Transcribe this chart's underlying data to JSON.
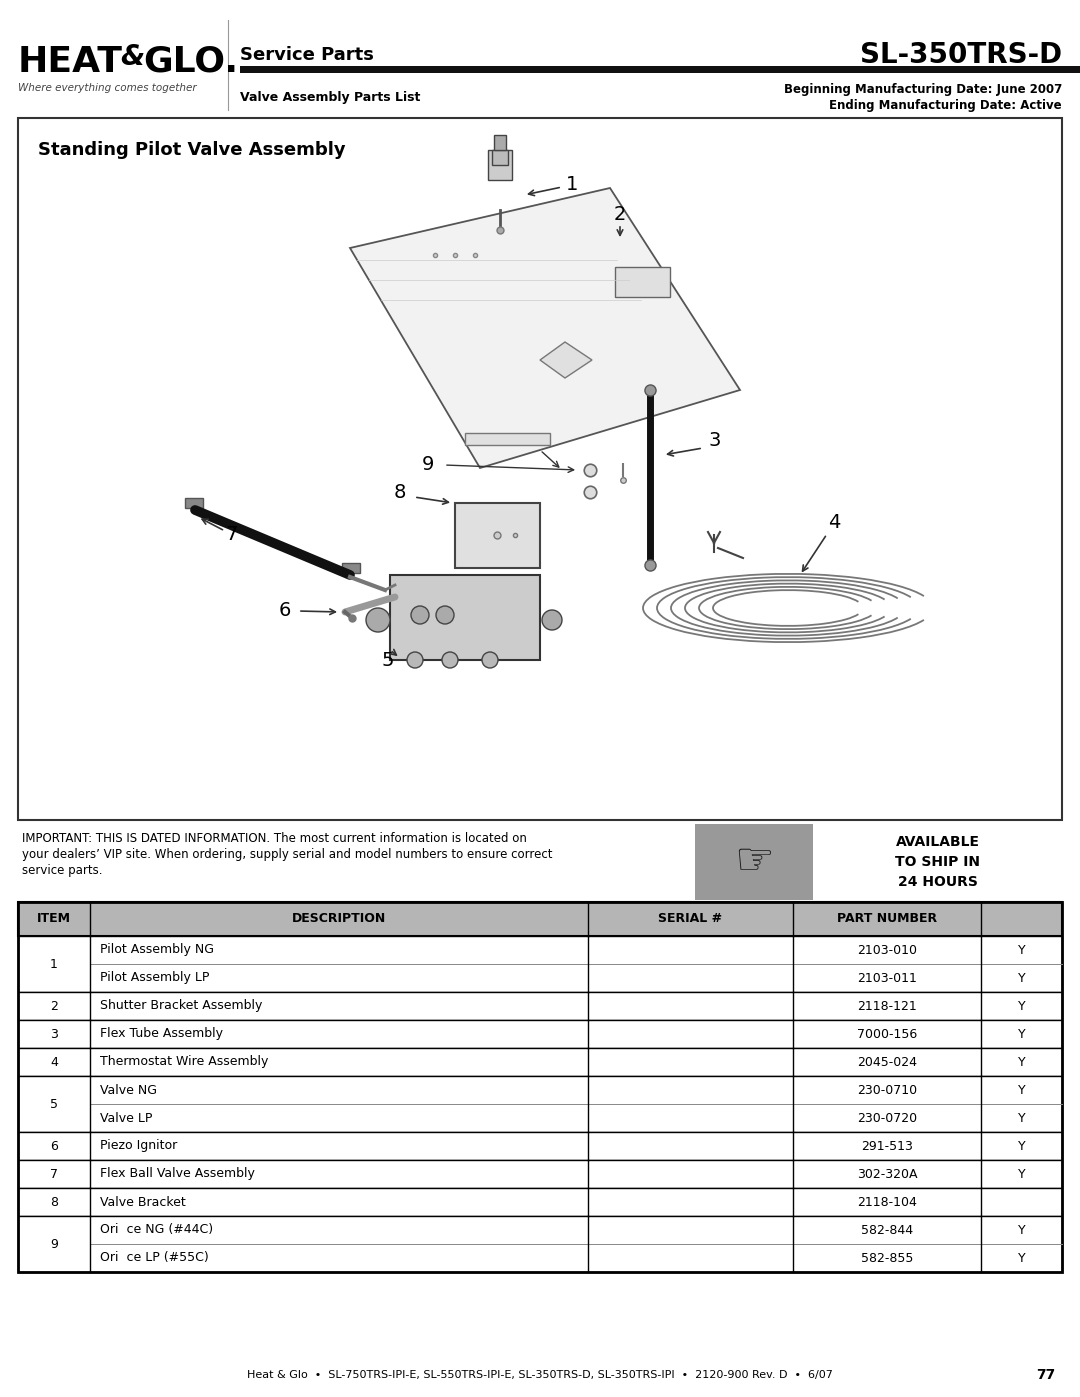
{
  "page_width": 10.8,
  "page_height": 13.97,
  "bg_color": "#ffffff",
  "header": {
    "logo_text_heat": "HEAT",
    "logo_text_amp": "&",
    "logo_text_glo": "GLO.",
    "logo_subtitle": "Where everything comes together",
    "service_parts": "Service Parts",
    "model": "SL-350TRS-D",
    "parts_list_label": "Valve Assembly Parts List",
    "mfg_start": "Beginning Manufacturing Date: June 2007",
    "mfg_end": "Ending Manufacturing Date: Active"
  },
  "diagram_title": "Standing Pilot Valve Assembly",
  "important_text_line1": "IMPORTANT: THIS IS DATED INFORMATION. The most current information is located on",
  "important_text_line2": "your dealers’ VIP site. When ordering, supply serial and model numbers to ensure correct",
  "important_text_line3": "service parts.",
  "available_text": "AVAILABLE\nTO SHIP IN\n24 HOURS",
  "table_headers": [
    "ITEM",
    "DESCRIPTION",
    "SERIAL #",
    "PART NUMBER",
    ""
  ],
  "table_rows": [
    [
      "1",
      "Pilot Assembly NG",
      "",
      "2103-010",
      "Y"
    ],
    [
      "1",
      "Pilot Assembly LP",
      "",
      "2103-011",
      "Y"
    ],
    [
      "2",
      "Shutter Bracket Assembly",
      "",
      "2118-121",
      "Y"
    ],
    [
      "3",
      "Flex Tube Assembly",
      "",
      "7000-156",
      "Y"
    ],
    [
      "4",
      "Thermostat Wire Assembly",
      "",
      "2045-024",
      "Y"
    ],
    [
      "5",
      "Valve NG",
      "",
      "230-0710",
      "Y"
    ],
    [
      "5",
      "Valve LP",
      "",
      "230-0720",
      "Y"
    ],
    [
      "6",
      "Piezo Ignitor",
      "",
      "291-513",
      "Y"
    ],
    [
      "7",
      "Flex Ball Valve Assembly",
      "",
      "302-320A",
      "Y"
    ],
    [
      "8",
      "Valve Bracket",
      "",
      "2118-104",
      ""
    ],
    [
      "9",
      "Ori  ce NG (#44C)",
      "",
      "582-844",
      "Y"
    ],
    [
      "9",
      "Ori  ce LP (#55C)",
      "",
      "582-855",
      "Y"
    ]
  ],
  "footer_text": "Heat & Glo  •  SL-750TRS-IPI-E, SL-550TRS-IPI-E, SL-350TRS-D, SL-350TRS-IPI  •  2120-900 Rev. D  •  6/07",
  "page_number": "77",
  "header_bar_color": "#1a1a1a",
  "table_header_bg": "#bbbbbb",
  "table_border_color": "#000000"
}
